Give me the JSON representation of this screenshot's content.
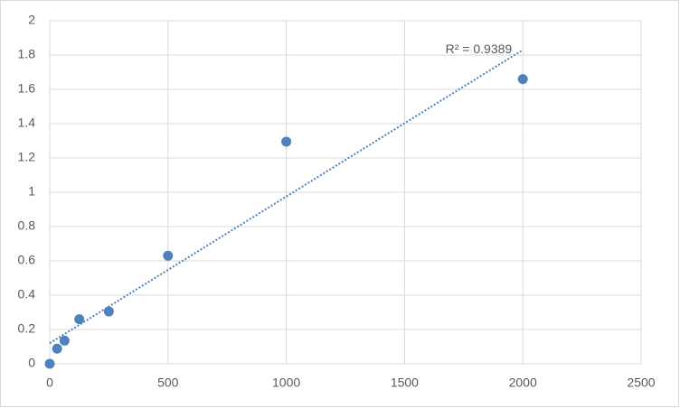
{
  "chart_data": {
    "type": "scatter",
    "x": [
      0,
      31.25,
      62.5,
      125,
      250,
      500,
      1000,
      2000
    ],
    "series": [
      {
        "color": "#4f81bd",
        "values": [
          0,
          0.088,
          0.135,
          0.26,
          0.305,
          0.63,
          1.295,
          1.66
        ]
      }
    ],
    "trendline": {
      "x": [
        0,
        2000
      ],
      "y": [
        0.12,
        1.83
      ],
      "label": "R² = 0.9389"
    },
    "xlim": [
      0,
      2500
    ],
    "xticks": [
      0,
      500,
      1000,
      1500,
      2000,
      2500
    ],
    "ylim": [
      0,
      2
    ],
    "yticks": [
      0,
      0.2,
      0.4,
      0.6,
      0.8,
      1,
      1.2,
      1.4,
      1.6,
      1.8,
      2
    ],
    "grid": true
  }
}
